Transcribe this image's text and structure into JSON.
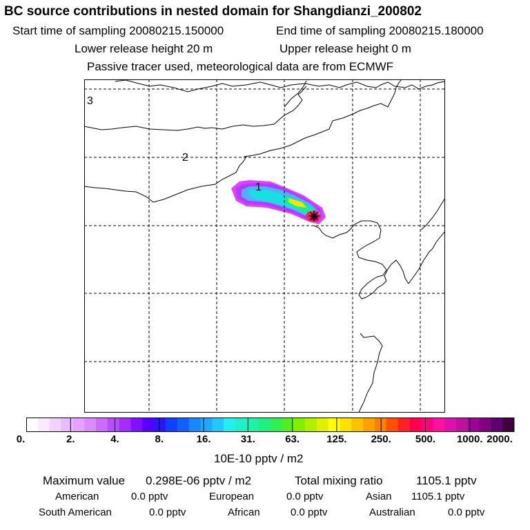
{
  "header": {
    "title": "BC  source contributions in nested domain for Shangdianzi_200802",
    "start_label": "Start time of sampling 20080215.150000",
    "end_label": "End time of sampling 20080215.180000",
    "lower_label": "Lower release height   20 m",
    "upper_label": "Upper release height    0 m",
    "note": "Passive tracer used, meteorological data are from ECMWF"
  },
  "map": {
    "day_labels": [
      "3",
      "2",
      "1"
    ],
    "plume_colors": [
      "#e040ff",
      "#b03cff",
      "#4fb0ff",
      "#18e0e0",
      "#20e890",
      "#c8ff00",
      "#ffe000",
      "#ff2060",
      "#70004a"
    ],
    "receptor_marker": "star-marker"
  },
  "colorbar": {
    "colors": [
      "#ffffff",
      "#fbe9ff",
      "#f4d2ff",
      "#ecbbff",
      "#e5a3ff",
      "#dc8aff",
      "#cc6cff",
      "#b94cff",
      "#a42cff",
      "#8010ff",
      "#5500ff",
      "#2c14ff",
      "#1040ff",
      "#1060ff",
      "#1888ff",
      "#20a8ff",
      "#20c8ff",
      "#20f0f0",
      "#20f0c8",
      "#20f0a8",
      "#20f080",
      "#30f050",
      "#50f020",
      "#80f000",
      "#b0f000",
      "#e0f000",
      "#ffff00",
      "#ffe000",
      "#ffc000",
      "#ffa000",
      "#ff8000",
      "#ff5000",
      "#ff2020",
      "#ff0050",
      "#ff0080",
      "#ff10a0",
      "#e010b0",
      "#c010a0",
      "#a00098",
      "#800080",
      "#600070",
      "#400040"
    ],
    "ticks": [
      "0.",
      "2.",
      "4.",
      "8.",
      "16.",
      "31.",
      "63.",
      "125.",
      "250.",
      "500.",
      "1000.",
      "2000."
    ],
    "units": "10E-10 pptv / m2"
  },
  "stats": {
    "max_label": "Maximum value",
    "max_value": "0.298E-06 pptv / m2",
    "total_label": "Total mixing ratio",
    "total_value": "1105.1 pptv",
    "regions": [
      {
        "name": "American",
        "value": "0.0 pptv"
      },
      {
        "name": "European",
        "value": "0.0 pptv"
      },
      {
        "name": "Asian",
        "value": "1105.1 pptv"
      },
      {
        "name": "South American",
        "value": "0.0 pptv"
      },
      {
        "name": "African",
        "value": "0.0 pptv"
      },
      {
        "name": "Australian",
        "value": "0.0 pptv"
      }
    ]
  }
}
